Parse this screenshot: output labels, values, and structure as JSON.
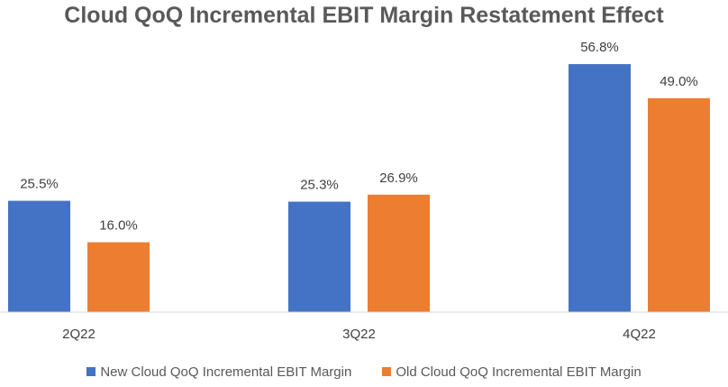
{
  "chart_data": {
    "type": "bar",
    "title": "Cloud QoQ Incremental EBIT Margin Restatement Effect",
    "xlabel": "",
    "ylabel": "",
    "categories": [
      "2Q22",
      "3Q22",
      "4Q22"
    ],
    "series": [
      {
        "name": "New Cloud QoQ Incremental EBIT Margin",
        "color": "#4472C4",
        "values": [
          25.5,
          25.3,
          56.8
        ],
        "labels": [
          "25.5%",
          "25.3%",
          "56.8%"
        ]
      },
      {
        "name": "Old Cloud QoQ Incremental EBIT Margin",
        "color": "#ED7D31",
        "values": [
          16.0,
          26.9,
          49.0
        ],
        "labels": [
          "16.0%",
          "26.9%",
          "49.0%"
        ]
      }
    ],
    "ylim": [
      0,
      60
    ],
    "grid": false,
    "legend": "bottom"
  }
}
